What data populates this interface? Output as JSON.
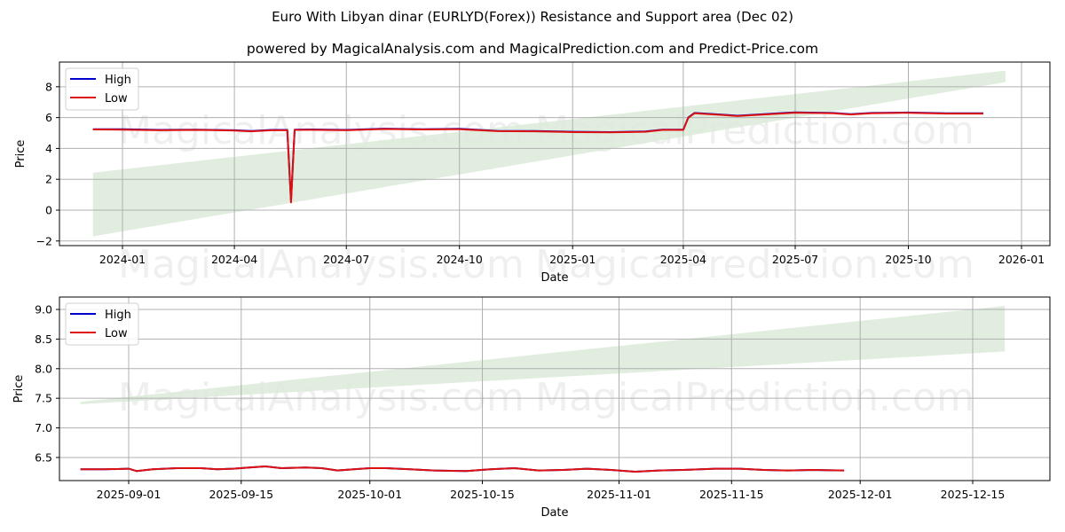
{
  "header": {
    "title": "Euro With Libyan dinar (EURLYD(Forex)) Resistance and Support area (Dec 02)",
    "subtitle": "powered by MagicalAnalysis.com and MagicalPrediction.com and Predict-Price.com"
  },
  "watermarks": [
    "MagicalAnalysis.com",
    "MagicalPrediction.com"
  ],
  "colors": {
    "high": "#0000cc",
    "low": "#dd1111",
    "band": "#dcebd9",
    "grid": "#b0b0b0"
  },
  "chart_data": [
    {
      "type": "line",
      "title": "",
      "xlabel": "Date",
      "ylabel": "Price",
      "ylim": [
        -2.3,
        9.6
      ],
      "grid": true,
      "legend_position": "upper left",
      "legend": [
        "High",
        "Low"
      ],
      "xtick_labels": [
        "2024-01",
        "2024-04",
        "2024-07",
        "2024-10",
        "2025-01",
        "2025-04",
        "2025-07",
        "2025-10",
        "2026-01"
      ],
      "ytick_labels": [
        "−2",
        "0",
        "2",
        "4",
        "6",
        "8"
      ],
      "ytick_values": [
        -2,
        0,
        2,
        4,
        6,
        8
      ],
      "x": [
        "2023-12-08",
        "2024-01-01",
        "2024-02-01",
        "2024-03-01",
        "2024-04-01",
        "2024-04-15",
        "2024-05-01",
        "2024-05-14",
        "2024-05-17",
        "2024-05-20",
        "2024-06-01",
        "2024-07-01",
        "2024-08-01",
        "2024-09-01",
        "2024-10-01",
        "2024-11-01",
        "2024-12-01",
        "2025-01-01",
        "2025-02-01",
        "2025-03-01",
        "2025-03-15",
        "2025-04-01",
        "2025-04-05",
        "2025-04-10",
        "2025-05-01",
        "2025-05-15",
        "2025-06-01",
        "2025-07-01",
        "2025-08-01",
        "2025-08-15",
        "2025-09-01",
        "2025-10-01",
        "2025-11-01",
        "2025-12-01"
      ],
      "series": [
        {
          "name": "High",
          "values": [
            5.25,
            5.24,
            5.2,
            5.22,
            5.18,
            5.13,
            5.2,
            5.2,
            0.6,
            5.22,
            5.23,
            5.2,
            5.28,
            5.25,
            5.27,
            5.14,
            5.13,
            5.08,
            5.06,
            5.1,
            5.22,
            5.22,
            6.0,
            6.3,
            6.2,
            6.12,
            6.2,
            6.34,
            6.3,
            6.22,
            6.3,
            6.33,
            6.28,
            6.28
          ]
        },
        {
          "name": "Low",
          "values": [
            5.23,
            5.22,
            5.18,
            5.2,
            5.16,
            5.11,
            5.18,
            5.18,
            0.5,
            5.2,
            5.21,
            5.18,
            5.26,
            5.23,
            5.25,
            5.12,
            5.11,
            5.06,
            5.04,
            5.08,
            5.2,
            5.2,
            5.98,
            6.28,
            6.18,
            6.1,
            6.18,
            6.32,
            6.28,
            6.2,
            6.28,
            6.31,
            6.26,
            6.26
          ]
        }
      ],
      "band": {
        "name": "Resistance and Support area",
        "start": "2023-12-08",
        "end": "2025-12-19",
        "start_range": [
          -1.7,
          2.43
        ],
        "end_range": [
          8.3,
          9.05
        ]
      }
    },
    {
      "type": "line",
      "title": "",
      "xlabel": "Date",
      "ylabel": "Price",
      "ylim": [
        6.11,
        9.21
      ],
      "grid": true,
      "legend_position": "upper left",
      "legend": [
        "High",
        "Low"
      ],
      "xtick_labels": [
        "2025-09-01",
        "2025-09-15",
        "2025-10-01",
        "2025-10-15",
        "2025-11-01",
        "2025-11-15",
        "2025-12-01",
        "2025-12-15"
      ],
      "ytick_labels": [
        "6.5",
        "7.0",
        "7.5",
        "8.0",
        "8.5",
        "9.0"
      ],
      "ytick_values": [
        6.5,
        7.0,
        7.5,
        8.0,
        8.5,
        9.0
      ],
      "x": [
        "2025-08-26",
        "2025-08-29",
        "2025-09-01",
        "2025-09-02",
        "2025-09-04",
        "2025-09-07",
        "2025-09-10",
        "2025-09-12",
        "2025-09-14",
        "2025-09-16",
        "2025-09-18",
        "2025-09-20",
        "2025-09-23",
        "2025-09-25",
        "2025-09-27",
        "2025-09-29",
        "2025-10-01",
        "2025-10-03",
        "2025-10-06",
        "2025-10-09",
        "2025-10-13",
        "2025-10-16",
        "2025-10-19",
        "2025-10-22",
        "2025-10-25",
        "2025-10-28",
        "2025-10-31",
        "2025-11-03",
        "2025-11-06",
        "2025-11-09",
        "2025-11-13",
        "2025-11-16",
        "2025-11-19",
        "2025-11-22",
        "2025-11-25",
        "2025-11-29"
      ],
      "series": [
        {
          "name": "High",
          "values": [
            6.3,
            6.3,
            6.31,
            6.27,
            6.3,
            6.32,
            6.32,
            6.3,
            6.31,
            6.33,
            6.35,
            6.32,
            6.33,
            6.32,
            6.28,
            6.3,
            6.32,
            6.32,
            6.3,
            6.28,
            6.27,
            6.3,
            6.32,
            6.28,
            6.29,
            6.31,
            6.29,
            6.26,
            6.28,
            6.29,
            6.31,
            6.31,
            6.29,
            6.28,
            6.29,
            6.28
          ]
        },
        {
          "name": "Low",
          "values": [
            6.3,
            6.3,
            6.31,
            6.27,
            6.3,
            6.32,
            6.32,
            6.3,
            6.31,
            6.33,
            6.35,
            6.32,
            6.33,
            6.32,
            6.28,
            6.3,
            6.32,
            6.32,
            6.3,
            6.28,
            6.27,
            6.3,
            6.32,
            6.28,
            6.29,
            6.31,
            6.29,
            6.26,
            6.28,
            6.29,
            6.31,
            6.31,
            6.29,
            6.28,
            6.29,
            6.28
          ]
        }
      ],
      "band": {
        "name": "Resistance and Support area",
        "start": "2025-08-26",
        "end": "2025-12-19",
        "start_range": [
          7.4,
          7.44
        ],
        "end_range": [
          8.29,
          9.06
        ]
      }
    }
  ]
}
